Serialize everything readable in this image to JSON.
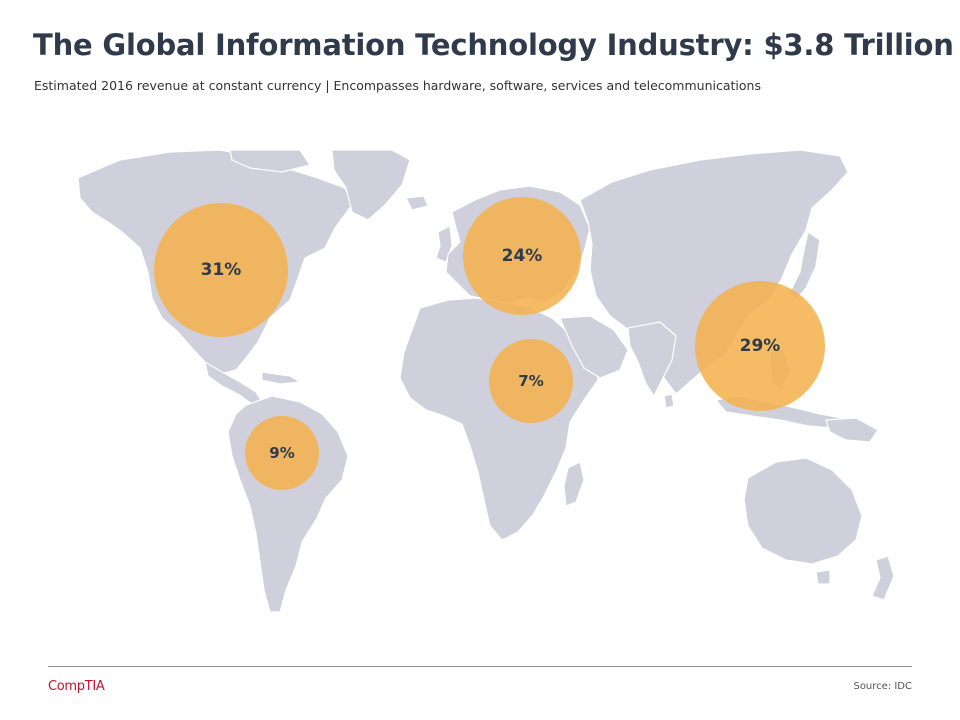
{
  "header": {
    "title": "The Global Information Technology Industry: $3.8 Trillion",
    "subtitle": "Estimated 2016 revenue at constant currency | Encompasses hardware, software, services and telecommunications"
  },
  "footer": {
    "logo_text": "CompTIA",
    "source": "Source: IDC"
  },
  "colors": {
    "land": "#cfd0db",
    "border": "#ffffff",
    "bubble": "#f4b04a",
    "logo": "#c8102e"
  },
  "regions": [
    {
      "id": "north-america",
      "label": "31%",
      "share": 31
    },
    {
      "id": "europe",
      "label": "24%",
      "share": 24
    },
    {
      "id": "asia-pacific",
      "label": "29%",
      "share": 29
    },
    {
      "id": "middle-east-africa",
      "label": "7%",
      "share": 7
    },
    {
      "id": "latin-america",
      "label": "9%",
      "share": 9
    }
  ]
}
